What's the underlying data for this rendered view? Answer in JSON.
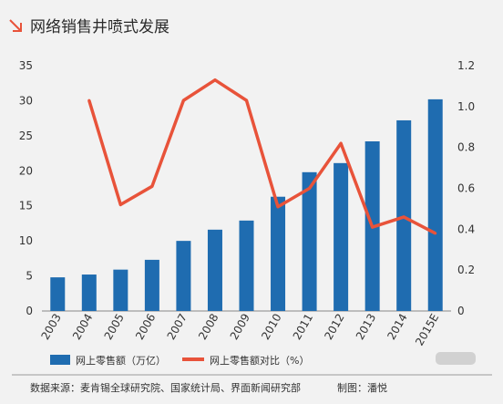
{
  "header": {
    "title": "网络销售井喷式发展",
    "accent_color": "#e8533a",
    "icon": "arrow-down-right-icon"
  },
  "legend": {
    "bar_label": "网上零售额（万亿）",
    "line_label": "网上零售额对比（%）"
  },
  "footer": {
    "source": "数据来源：麦肯锡全球研究院、国家统计局、界面新闻研究部",
    "credit": "制图：潘悦"
  },
  "chart_data": {
    "type": "bar",
    "categories": [
      "2003",
      "2004",
      "2005",
      "2006",
      "2007",
      "2008",
      "2009",
      "2010",
      "2011",
      "2012",
      "2013",
      "2014",
      "2015E"
    ],
    "series": [
      {
        "name": "网上零售额（万亿）",
        "type": "bar",
        "axis": "left",
        "color": "#1f6cb0",
        "values": [
          4.8,
          5.2,
          5.9,
          7.3,
          10.0,
          11.6,
          12.9,
          16.3,
          19.8,
          21.1,
          24.2,
          27.2,
          30.2
        ]
      },
      {
        "name": "网上零售额对比（%）",
        "type": "line",
        "axis": "right",
        "color": "#e8533a",
        "values": [
          null,
          1.03,
          0.52,
          0.61,
          1.03,
          1.13,
          1.03,
          0.51,
          0.6,
          0.82,
          0.41,
          0.46,
          0.38
        ]
      }
    ],
    "y_left": {
      "ylim": [
        0,
        35
      ],
      "ticks": [
        "0",
        "5",
        "10",
        "15",
        "20",
        "25",
        "30",
        "35"
      ]
    },
    "y_right": {
      "ylim": [
        0,
        1.2
      ],
      "ticks": [
        "0",
        "0.2",
        "0.4",
        "0.6",
        "0.8",
        "1.0",
        "1.2"
      ]
    },
    "grid": false,
    "legend_position": "bottom-left"
  }
}
